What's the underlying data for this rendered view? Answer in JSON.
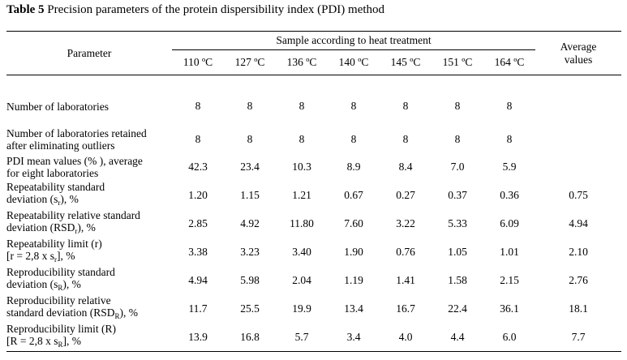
{
  "caption": {
    "label": "Table 5",
    "text": "Precision parameters of the protein dispersibility index (PDI) method"
  },
  "header": {
    "parameter": "Parameter",
    "group": "Sample according to heat treatment",
    "average_line1": "Average",
    "average_line2": "values",
    "temperatures": [
      "110 ºC",
      "127 ºC",
      "136 ºC",
      "140 ºC",
      "145 ºC",
      "151 ºC",
      "164 ºC"
    ]
  },
  "rows": [
    {
      "line1": "Number of laboratories",
      "line2": "",
      "values": [
        "8",
        "8",
        "8",
        "8",
        "8",
        "8",
        "8"
      ],
      "average": ""
    },
    {
      "line1": "Number of laboratories retained",
      "line2": "after eliminating outliers",
      "values": [
        "8",
        "8",
        "8",
        "8",
        "8",
        "8",
        "8"
      ],
      "average": ""
    },
    {
      "line1": "PDI mean values (% ), average",
      "line2": "for eight laboratories",
      "values": [
        "42.3",
        "23.4",
        "10.3",
        "8.9",
        "8.4",
        "7.0",
        "5.9"
      ],
      "average": ""
    },
    {
      "line1": "Repeatability standard",
      "line2": "deviation (s",
      "line2_sub": "r",
      "line2_end": "), %",
      "values": [
        "1.20",
        "1.15",
        "1.21",
        "0.67",
        "0.27",
        "0.37",
        "0.36"
      ],
      "average": "0.75"
    },
    {
      "line1": "Repeatability relative standard",
      "line2": "deviation (RSD",
      "line2_sub": "r",
      "line2_end": "), %",
      "values": [
        "2.85",
        "4.92",
        "11.80",
        "7.60",
        "3.22",
        "5.33",
        "6.09"
      ],
      "average": "4.94"
    },
    {
      "line1": "Repeatability limit (r)",
      "line2": "[r = 2,8 x s",
      "line2_sub": "r",
      "line2_end": "], %",
      "values": [
        "3.38",
        "3.23",
        "3.40",
        "1.90",
        "0.76",
        "1.05",
        "1.01"
      ],
      "average": "2.10"
    },
    {
      "line1": "Reproducibility standard",
      "line2": "deviation (s",
      "line2_sub": "R",
      "line2_end": "), %",
      "values": [
        "4.94",
        "5.98",
        "2.04",
        "1.19",
        "1.41",
        "1.58",
        "2.15"
      ],
      "average": "2.76"
    },
    {
      "line1": "Reproducibility relative",
      "line2": "standard deviation (RSD",
      "line2_sub": "R",
      "line2_end": "), %",
      "values": [
        "11.7",
        "25.5",
        "19.9",
        "13.4",
        "16.7",
        "22.4",
        "36.1"
      ],
      "average": "18.1"
    },
    {
      "line1": "Reproducibility limit (R)",
      "line2": "[R = 2,8 x s",
      "line2_sub": "R",
      "line2_end": "], %",
      "values": [
        "13.9",
        "16.8",
        "5.7",
        "3.4",
        "4.0",
        "4.4",
        "6.0"
      ],
      "average": "7.7"
    }
  ]
}
